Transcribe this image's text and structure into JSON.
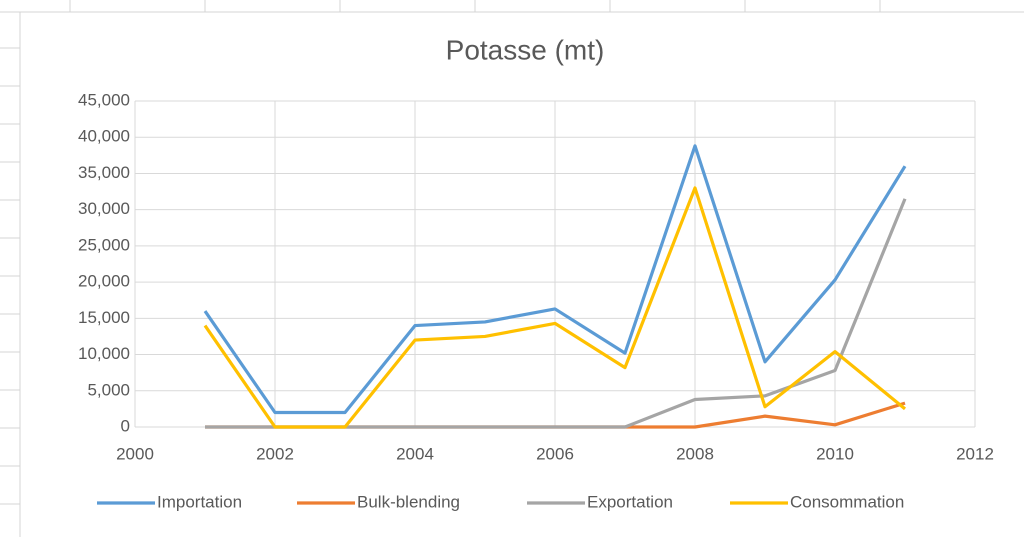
{
  "chart_data": {
    "type": "line",
    "title": "Potasse (mt)",
    "x": [
      2001,
      2002,
      2003,
      2004,
      2005,
      2006,
      2007,
      2008,
      2009,
      2010,
      2011
    ],
    "series": [
      {
        "name": "Importation",
        "color": "#5b9bd5",
        "values": [
          16000,
          2000,
          2000,
          14000,
          14500,
          16300,
          10200,
          38800,
          9000,
          20300,
          36000
        ]
      },
      {
        "name": "Bulk-blending",
        "color": "#ed7d31",
        "values": [
          0,
          0,
          0,
          0,
          0,
          0,
          0,
          0,
          1500,
          300,
          3300
        ]
      },
      {
        "name": "Exportation",
        "color": "#a5a5a5",
        "values": [
          0,
          0,
          0,
          0,
          0,
          0,
          0,
          3800,
          4300,
          7800,
          31500
        ]
      },
      {
        "name": "Consommation",
        "color": "#ffc000",
        "values": [
          14000,
          0,
          0,
          12000,
          12500,
          14300,
          8200,
          33000,
          2800,
          10400,
          2500
        ]
      }
    ],
    "xlim": [
      2000,
      2012
    ],
    "xticks": [
      2000,
      2002,
      2004,
      2006,
      2008,
      2010,
      2012
    ],
    "ylim": [
      0,
      45000
    ],
    "yticks": [
      0,
      {
        "value": 5000,
        "label": "5,000"
      },
      {
        "value": 10000,
        "label": "10,000"
      },
      {
        "value": 15000,
        "label": "15,000"
      },
      {
        "value": 20000,
        "label": "20,000"
      },
      {
        "value": 25000,
        "label": "25,000"
      },
      {
        "value": 30000,
        "label": "30,000"
      },
      {
        "value": 35000,
        "label": "35,000"
      },
      {
        "value": 40000,
        "label": "40,000"
      },
      {
        "value": 45000,
        "label": "45,000"
      }
    ],
    "grid": true,
    "legend": "bottom"
  }
}
